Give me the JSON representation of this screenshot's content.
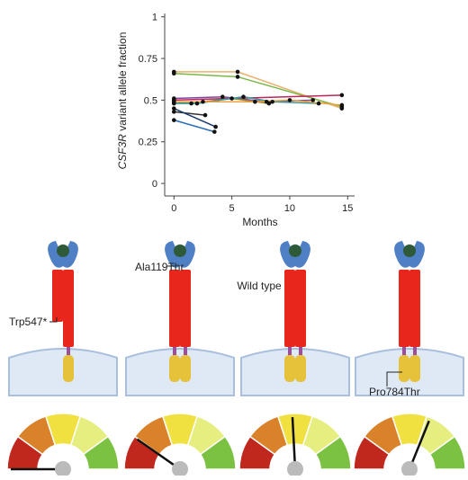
{
  "chart_data": {
    "type": "line",
    "y_label_gene": "CSF3R",
    "y_label": "variant allele fraction",
    "x_label": "Months",
    "xlim": [
      -0.8,
      15.6
    ],
    "xticks": [
      0,
      5,
      10,
      15
    ],
    "ylim": [
      -0.075,
      1.02
    ],
    "yticks": [
      0,
      0.25,
      0.5,
      0.75,
      1
    ],
    "point_color": "#111111",
    "series": [
      {
        "color": "#e8b070",
        "x": [
          0,
          5.5,
          14.5
        ],
        "values": [
          0.67,
          0.67,
          0.45
        ]
      },
      {
        "color": "#7ab648",
        "x": [
          0,
          5.5,
          14.5
        ],
        "values": [
          0.66,
          0.64,
          0.46
        ]
      },
      {
        "color": "#c0245a",
        "x": [
          0,
          14.5
        ],
        "values": [
          0.5,
          0.53
        ]
      },
      {
        "color": "#2a6db5",
        "x": [
          0,
          3.5
        ],
        "values": [
          0.38,
          0.31
        ]
      },
      {
        "color": "#333333",
        "x": [
          0,
          2.7
        ],
        "values": [
          0.43,
          0.41
        ]
      },
      {
        "color": "#1a3a70",
        "x": [
          0,
          3.6
        ],
        "values": [
          0.45,
          0.34
        ]
      },
      {
        "color": "#7b4aa0",
        "x": [
          0,
          4.2,
          8,
          12
        ],
        "values": [
          0.51,
          0.52,
          0.49,
          0.5
        ]
      },
      {
        "color": "#8a8a30",
        "x": [
          0,
          1.5,
          2.5,
          5,
          8.2
        ],
        "values": [
          0.49,
          0.48,
          0.49,
          0.51,
          0.48
        ]
      },
      {
        "color": "#3a9a9a",
        "x": [
          0,
          2,
          6,
          8.5,
          12.5
        ],
        "values": [
          0.48,
          0.48,
          0.52,
          0.49,
          0.48
        ]
      },
      {
        "color": "#f0a040",
        "x": [
          0,
          7,
          10,
          14.5
        ],
        "values": [
          0.49,
          0.49,
          0.5,
          0.47
        ]
      }
    ]
  },
  "diagram": {
    "labels": [
      "Trp547*",
      "Ala119Thr",
      "Wild type",
      "Pro784Thr"
    ]
  }
}
